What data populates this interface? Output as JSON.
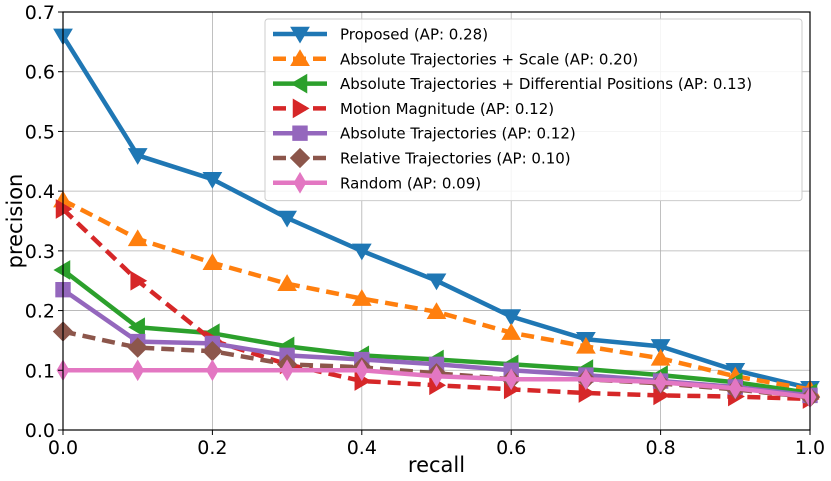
{
  "chart_data": {
    "type": "line",
    "title": "",
    "xlabel": "recall",
    "ylabel": "precision",
    "xlim": [
      0.0,
      1.0
    ],
    "ylim": [
      0.0,
      0.7
    ],
    "grid": true,
    "legend_position": "top-right",
    "x": [
      0.0,
      0.1,
      0.2,
      0.3,
      0.4,
      0.5,
      0.6,
      0.7,
      0.8,
      0.9,
      1.0
    ],
    "x_ticks": [
      "0.0",
      "0.2",
      "0.4",
      "0.6",
      "0.8",
      "1.0"
    ],
    "y_ticks": [
      "0.0",
      "0.1",
      "0.2",
      "0.3",
      "0.4",
      "0.5",
      "0.6",
      "0.7"
    ],
    "series": [
      {
        "name": "Proposed (AP: 0.28)",
        "color": "#1f77b4",
        "dash": "solid",
        "marker": "triangle-down",
        "values": [
          0.66,
          0.46,
          0.42,
          0.355,
          0.3,
          0.25,
          0.19,
          0.152,
          0.14,
          0.1,
          0.07
        ]
      },
      {
        "name": "Absolute Trajectories + Scale (AP: 0.20)",
        "color": "#ff7f0e",
        "dash": "dashed",
        "marker": "triangle-up",
        "values": [
          0.385,
          0.32,
          0.28,
          0.245,
          0.22,
          0.198,
          0.163,
          0.14,
          0.12,
          0.09,
          0.068
        ]
      },
      {
        "name": "Absolute Trajectories + Differential Positions (AP: 0.13)",
        "color": "#2ca02c",
        "dash": "solid",
        "marker": "triangle-left",
        "values": [
          0.268,
          0.172,
          0.162,
          0.14,
          0.125,
          0.118,
          0.11,
          0.102,
          0.092,
          0.08,
          0.062
        ]
      },
      {
        "name": "Motion Magnitude (AP: 0.12)",
        "color": "#d62728",
        "dash": "dashed",
        "marker": "triangle-right",
        "values": [
          0.37,
          0.25,
          0.15,
          0.11,
          0.082,
          0.075,
          0.068,
          0.062,
          0.058,
          0.056,
          0.052
        ]
      },
      {
        "name": "Absolute Trajectories (AP: 0.12)",
        "color": "#9467bd",
        "dash": "solid",
        "marker": "square",
        "values": [
          0.235,
          0.148,
          0.145,
          0.125,
          0.118,
          0.11,
          0.1,
          0.092,
          0.082,
          0.072,
          0.058
        ]
      },
      {
        "name": "Relative Trajectories (AP: 0.10)",
        "color": "#8c564b",
        "dash": "dashed",
        "marker": "diamond",
        "values": [
          0.165,
          0.138,
          0.132,
          0.11,
          0.105,
          0.095,
          0.085,
          0.085,
          0.078,
          0.068,
          0.055
        ]
      },
      {
        "name": "Random (AP: 0.09)",
        "color": "#e377c2",
        "dash": "solid",
        "marker": "thin-diamond",
        "values": [
          0.1,
          0.1,
          0.1,
          0.1,
          0.1,
          0.09,
          0.085,
          0.085,
          0.08,
          0.07,
          0.055
        ]
      }
    ]
  }
}
